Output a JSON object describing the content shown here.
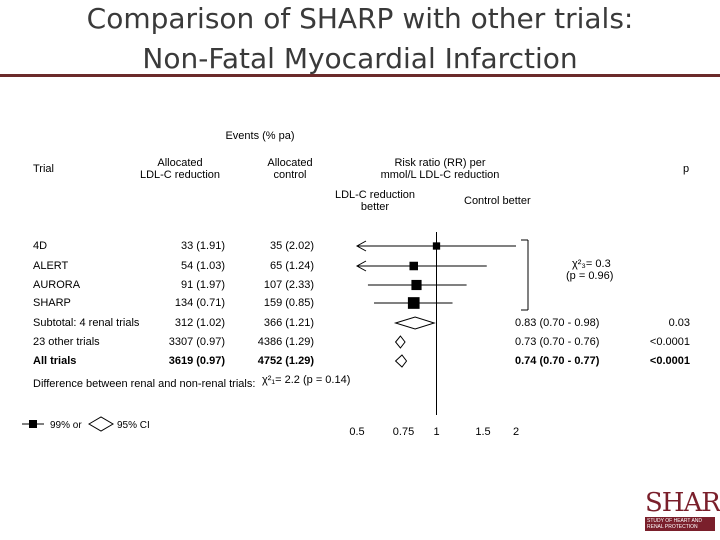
{
  "title": {
    "line1": "Comparison of SHARP with other trials:",
    "line2": "Non-Fatal Myocardial Infarction"
  },
  "headers": {
    "events": "Events (% pa)",
    "trial": "Trial",
    "alloc_ldl_1": "Allocated",
    "alloc_ldl_2": "LDL-C reduction",
    "alloc_ctrl_1": "Allocated",
    "alloc_ctrl_2": "control",
    "rr_1": "Risk ratio (RR) per",
    "rr_2": "mmol/L LDL-C reduction",
    "p": "p",
    "better_ldl_1": "LDL-C reduction",
    "better_ldl_2": "better",
    "better_ctrl": "Control better"
  },
  "heterogeneity": {
    "stat": "χ²₃= 0.3",
    "p": "(p = 0.96)"
  },
  "difference_note": {
    "label": "Difference between renal and non-renal trials:",
    "stat": "χ²₁= 2.2 (p = 0.14)"
  },
  "legend": {
    "ci99": "99% or",
    "ci95": "95% CI"
  },
  "logo": {
    "word": "SHARP",
    "band": "STUDY OF HEART AND RENAL PROTECTION"
  },
  "chart_data": {
    "type": "forest",
    "title": "Non-Fatal Myocardial Infarction",
    "xlabel": "Risk ratio (RR) per mmol/L LDL-C reduction",
    "x_scale": "log",
    "xlim": [
      0.5,
      2
    ],
    "x_ticks": [
      "0.5",
      "0.75",
      "1",
      "1.5",
      "2"
    ],
    "x_tick_values": [
      0.5,
      0.75,
      1,
      1.5,
      2
    ],
    "rows": [
      {
        "trial": "4D",
        "ldl": "33 (1.91)",
        "ctrl": "35 (2.02)",
        "rr": 1.0,
        "ci99_low": 0.5,
        "ci99_high": 2.0,
        "type": "trial",
        "bold": false,
        "left_arrow": true,
        "weight": 33
      },
      {
        "trial": "ALERT",
        "ldl": "54 (1.03)",
        "ctrl": "65 (1.24)",
        "rr": 0.82,
        "ci99_low": 0.5,
        "ci99_high": 1.55,
        "type": "trial",
        "bold": false,
        "left_arrow": true,
        "weight": 54
      },
      {
        "trial": "AURORA",
        "ldl": "91 (1.97)",
        "ctrl": "107 (2.33)",
        "rr": 0.84,
        "ci99_low": 0.55,
        "ci99_high": 1.3,
        "type": "trial",
        "bold": false,
        "left_arrow": false,
        "weight": 91
      },
      {
        "trial": "SHARP",
        "ldl": "134 (0.71)",
        "ctrl": "159 (0.85)",
        "rr": 0.82,
        "ci99_low": 0.58,
        "ci99_high": 1.15,
        "type": "trial",
        "bold": false,
        "left_arrow": false,
        "weight": 134
      },
      {
        "trial": "Subtotal: 4 renal trials",
        "ldl": "312 (1.02)",
        "ctrl": "366 (1.21)",
        "rr": 0.83,
        "ci95_low": 0.7,
        "ci95_high": 0.98,
        "rr_text": "0.83 (0.70 - 0.98)",
        "p": "0.03",
        "type": "subtotal",
        "bold": false
      },
      {
        "trial": "23 other trials",
        "ldl": "3307 (0.97)",
        "ctrl": "4386 (1.29)",
        "rr": 0.73,
        "ci95_low": 0.7,
        "ci95_high": 0.76,
        "rr_text": "0.73 (0.70 - 0.76)",
        "p": "<0.0001",
        "type": "subtotal",
        "bold": false
      },
      {
        "trial": "All trials",
        "ldl": "3619 (0.97)",
        "ctrl": "4752 (1.29)",
        "rr": 0.74,
        "ci95_low": 0.7,
        "ci95_high": 0.77,
        "rr_text": "0.74 (0.70 - 0.77)",
        "p": "<0.0001",
        "type": "total",
        "bold": true
      }
    ]
  }
}
